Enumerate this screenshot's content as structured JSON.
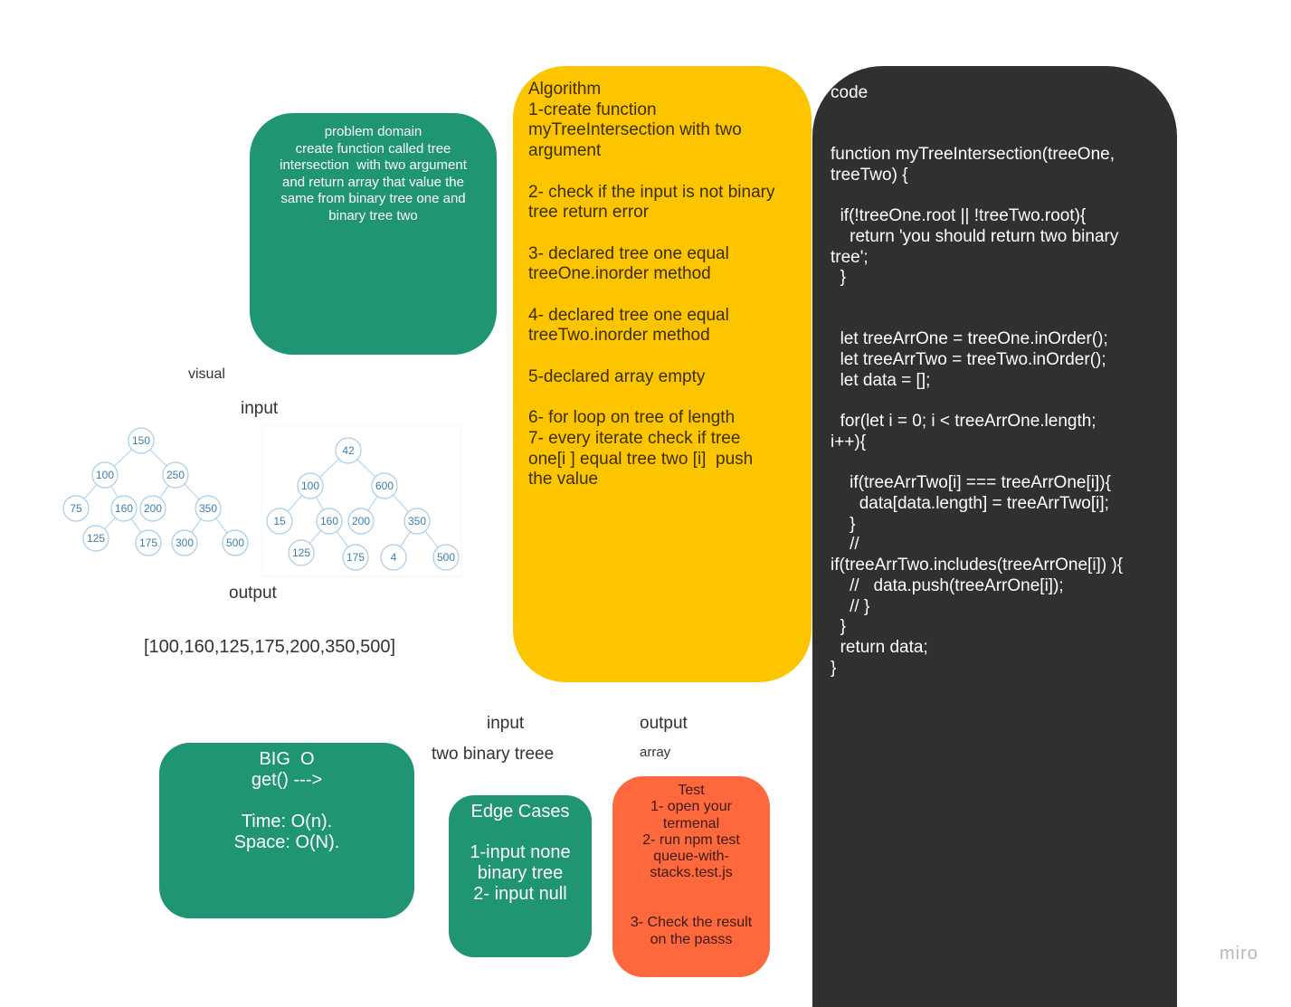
{
  "problem_domain": {
    "lines": [
      "problem domain",
      "create function called tree",
      "intersection  with two argument",
      "and return array that value the",
      "same from binary tree one and",
      "binary tree two"
    ]
  },
  "algorithm": {
    "lines": [
      "Algorithm",
      "1-create function",
      "myTreeIntersection with two",
      "argument",
      "",
      "2- check if the input is not binary",
      "tree return error",
      "",
      "3- declared tree one equal",
      "treeOne.inorder method",
      "",
      "4- declared tree one equal",
      "treeTwo.inorder method",
      "",
      "5-declared array empty",
      "",
      "6- for loop on tree of length",
      "7- every iterate check if tree",
      "one[i ] equal tree two [i]  push",
      "the value"
    ]
  },
  "code": {
    "lines": [
      "code",
      "",
      "",
      "function myTreeIntersection(treeOne,",
      "treeTwo) {",
      "",
      "  if(!treeOne.root || !treeTwo.root){",
      "    return 'you should return two binary",
      "tree';",
      "  }",
      "",
      "",
      "  let treeArrOne = treeOne.inOrder();",
      "  let treeArrTwo = treeTwo.inOrder();",
      "  let data = [];",
      "",
      "  for(let i = 0; i < treeArrOne.length;",
      "i++){",
      "",
      "    if(treeArrTwo[i] === treeArrOne[i]){",
      "      data[data.length] = treeArrTwo[i];",
      "    }",
      "    //",
      "if(treeArrTwo.includes(treeArrOne[i]) ){",
      "    //   data.push(treeArrOne[i]);",
      "    // }",
      "  }",
      "  return data;",
      "}"
    ]
  },
  "visual": {
    "visual_label": "visual",
    "input_label": "input",
    "output_label": "output",
    "output_value": "[100,160,125,175,200,350,500]",
    "tree_one": [
      "150",
      "100",
      "250",
      "75",
      "160",
      "200",
      "350",
      "125",
      "175",
      "300",
      "500"
    ],
    "tree_two": [
      "42",
      "100",
      "600",
      "15",
      "160",
      "200",
      "350",
      "125",
      "175",
      "4",
      "500"
    ]
  },
  "io": {
    "input_label": "input",
    "input_value": "two binary treee",
    "output_label": "output",
    "output_value": "array"
  },
  "big_o": {
    "lines": [
      "BIG  O",
      "get() --->",
      "",
      "Time: O(n).",
      "Space: O(N)."
    ]
  },
  "edge_cases": {
    "lines": [
      "Edge Cases",
      "",
      "1-input none",
      "binary tree",
      "2- input null"
    ]
  },
  "test": {
    "lines": [
      "Test",
      "1- open your",
      "termenal",
      "2- run npm test",
      "queue-with-",
      "stacks.test.js",
      "",
      "",
      "3- Check the result",
      "on the passs"
    ]
  },
  "watermark": "miro",
  "colors": {
    "green": "#1f9574",
    "yellow": "#fdc400",
    "dark": "#303030",
    "orange": "#fd683c",
    "node_stroke": "#a8cde6",
    "node_text": "#3b7db4"
  }
}
